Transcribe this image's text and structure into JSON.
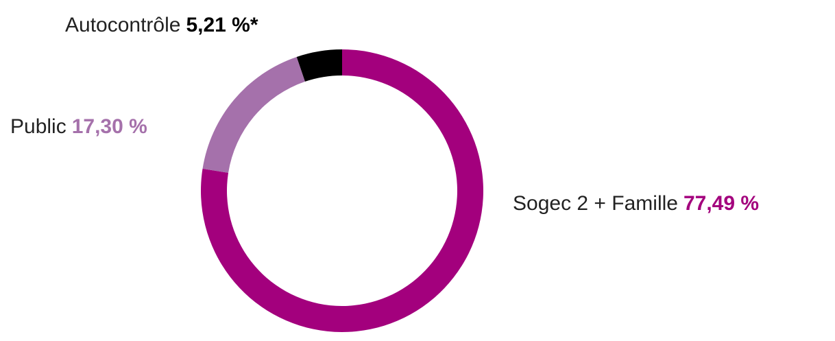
{
  "chart_data": {
    "type": "donut",
    "categories": [
      "Sogec 2 + Famille",
      "Public",
      "Autocontrôle"
    ],
    "values": [
      77.49,
      17.3,
      5.21
    ],
    "value_labels": [
      "77,49 %",
      "17,30 %",
      "5,21 %*"
    ],
    "colors": [
      "#a3007d",
      "#a571ab",
      "#000000"
    ],
    "label_value_colors": [
      "#a3007d",
      "#a571ab",
      "#000000"
    ]
  }
}
